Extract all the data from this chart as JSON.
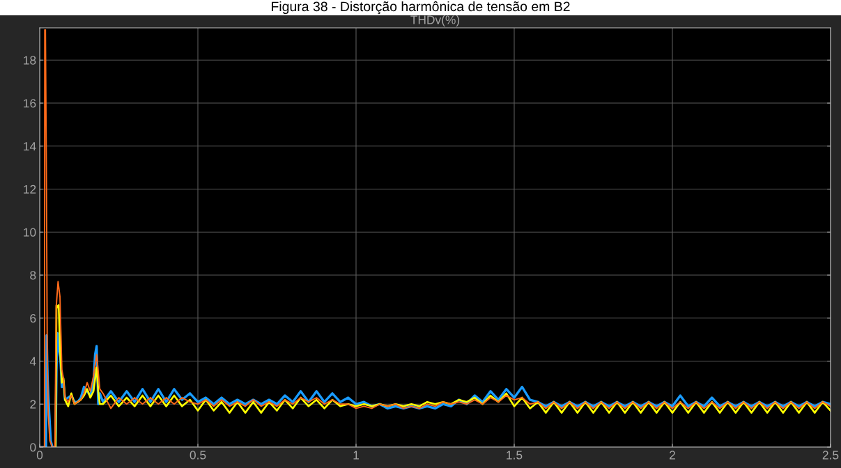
{
  "chart_data": {
    "type": "line",
    "title": "Figura 38 - Distorção harmônica de tensão em B2",
    "subtitle": "THDv(%)",
    "xlim": [
      0,
      2.5
    ],
    "xticks": [
      0,
      0.5,
      1,
      1.5,
      2,
      2.5
    ],
    "ylim": [
      0,
      19.5
    ],
    "yticks": [
      0,
      2,
      4,
      6,
      8,
      10,
      12,
      14,
      16,
      18
    ],
    "grid": true,
    "line_style": "solid",
    "series": [
      {
        "color": "#1a9cff",
        "x": [
          0,
          0.02,
          0.022,
          0.025,
          0.03,
          0.035,
          0.04,
          0.045,
          0.05,
          0.053,
          0.056,
          0.06,
          0.065,
          0.07,
          0.075,
          0.08,
          0.09,
          0.1,
          0.11,
          0.12,
          0.13,
          0.14,
          0.15,
          0.16,
          0.17,
          0.175,
          0.18,
          0.185,
          0.19,
          0.2,
          0.225,
          0.25,
          0.275,
          0.3,
          0.325,
          0.35,
          0.375,
          0.4,
          0.425,
          0.45,
          0.475,
          0.5,
          0.525,
          0.55,
          0.575,
          0.6,
          0.625,
          0.65,
          0.675,
          0.7,
          0.725,
          0.75,
          0.775,
          0.8,
          0.825,
          0.85,
          0.875,
          0.9,
          0.925,
          0.95,
          0.975,
          1.0,
          1.025,
          1.05,
          1.075,
          1.1,
          1.125,
          1.15,
          1.175,
          1.2,
          1.225,
          1.25,
          1.275,
          1.3,
          1.325,
          1.35,
          1.375,
          1.4,
          1.425,
          1.45,
          1.475,
          1.5,
          1.525,
          1.55,
          1.575,
          1.6,
          1.625,
          1.65,
          1.675,
          1.7,
          1.725,
          1.75,
          1.775,
          1.8,
          1.825,
          1.85,
          1.875,
          1.9,
          1.925,
          1.95,
          1.975,
          2.0,
          2.025,
          2.05,
          2.075,
          2.1,
          2.125,
          2.15,
          2.175,
          2.2,
          2.225,
          2.25,
          2.275,
          2.3,
          2.325,
          2.35,
          2.375,
          2.4,
          2.425,
          2.45,
          2.475,
          2.5
        ],
        "values": [
          0,
          0,
          5.2,
          3.2,
          1.6,
          0.3,
          0,
          0,
          0,
          3.6,
          5.3,
          4.6,
          4.2,
          2.8,
          3.1,
          2.2,
          2.3,
          2.4,
          2.1,
          2.1,
          2.3,
          2.8,
          2.6,
          2.4,
          3.0,
          4.3,
          4.7,
          2.0,
          2.5,
          2.1,
          2.6,
          2.1,
          2.6,
          2.1,
          2.7,
          2.1,
          2.7,
          2.1,
          2.7,
          2.2,
          2.5,
          2.1,
          2.3,
          2.0,
          2.3,
          2.0,
          2.2,
          2.0,
          2.2,
          2.0,
          2.2,
          2.0,
          2.4,
          2.1,
          2.6,
          2.1,
          2.6,
          2.1,
          2.5,
          2.1,
          2.3,
          2.0,
          2.1,
          1.9,
          2.0,
          1.8,
          1.9,
          1.8,
          1.9,
          1.8,
          1.9,
          1.8,
          2.0,
          1.9,
          2.2,
          2.0,
          2.4,
          2.1,
          2.6,
          2.2,
          2.7,
          2.3,
          2.8,
          2.2,
          2.1,
          1.9,
          2.1,
          1.9,
          2.1,
          1.9,
          2.1,
          1.9,
          2.1,
          1.9,
          2.1,
          1.9,
          2.1,
          1.9,
          2.1,
          1.9,
          2.1,
          1.9,
          2.4,
          1.9,
          2.1,
          1.9,
          2.3,
          1.9,
          2.1,
          1.9,
          2.1,
          1.9,
          2.1,
          1.9,
          2.1,
          1.9,
          2.1,
          1.9,
          2.1,
          1.9,
          2.1,
          2.0
        ]
      },
      {
        "color": "#ffff00",
        "x": [
          0.05,
          0.053,
          0.056,
          0.06,
          0.065,
          0.07,
          0.075,
          0.08,
          0.09,
          0.1,
          0.11,
          0.12,
          0.13,
          0.14,
          0.15,
          0.16,
          0.17,
          0.18,
          0.185,
          0.19,
          0.2,
          0.225,
          0.25,
          0.275,
          0.3,
          0.325,
          0.35,
          0.375,
          0.4,
          0.425,
          0.45,
          0.475,
          0.5,
          0.525,
          0.55,
          0.575,
          0.6,
          0.625,
          0.65,
          0.675,
          0.7,
          0.725,
          0.75,
          0.775,
          0.8,
          0.825,
          0.85,
          0.875,
          0.9,
          0.925,
          0.95,
          0.975,
          1.0,
          1.025,
          1.05,
          1.075,
          1.1,
          1.125,
          1.15,
          1.175,
          1.2,
          1.225,
          1.25,
          1.275,
          1.3,
          1.325,
          1.35,
          1.375,
          1.4,
          1.425,
          1.45,
          1.475,
          1.5,
          1.525,
          1.55,
          1.575,
          1.6,
          1.625,
          1.65,
          1.675,
          1.7,
          1.725,
          1.75,
          1.775,
          1.8,
          1.825,
          1.85,
          1.875,
          1.9,
          1.925,
          1.95,
          1.975,
          2.0,
          2.025,
          2.05,
          2.075,
          2.1,
          2.125,
          2.15,
          2.175,
          2.2,
          2.225,
          2.25,
          2.275,
          2.3,
          2.325,
          2.35,
          2.375,
          2.4,
          2.425,
          2.45,
          2.475,
          2.5
        ],
        "values": [
          0,
          6.6,
          6.5,
          6.6,
          4.3,
          3.0,
          3.2,
          2.2,
          1.9,
          2.5,
          2.0,
          2.1,
          2.2,
          2.4,
          2.7,
          2.3,
          2.6,
          3.7,
          2.6,
          2.0,
          2.0,
          2.4,
          1.9,
          2.3,
          1.9,
          2.4,
          1.9,
          2.4,
          1.9,
          2.4,
          1.9,
          2.2,
          1.7,
          2.2,
          1.7,
          2.1,
          1.6,
          2.1,
          1.6,
          2.1,
          1.6,
          2.1,
          1.7,
          2.2,
          1.8,
          2.3,
          1.9,
          2.2,
          1.8,
          2.2,
          1.9,
          2.0,
          1.9,
          2.0,
          1.9,
          2.0,
          1.9,
          2.0,
          1.9,
          2.0,
          1.9,
          2.1,
          2.0,
          2.1,
          2.0,
          2.2,
          2.1,
          2.3,
          2.0,
          2.4,
          2.1,
          2.5,
          1.9,
          2.3,
          1.8,
          2.1,
          1.6,
          2.1,
          1.6,
          2.1,
          1.6,
          2.1,
          1.6,
          2.1,
          1.6,
          2.1,
          1.6,
          2.1,
          1.6,
          2.1,
          1.6,
          2.1,
          1.6,
          2.1,
          1.6,
          2.1,
          1.6,
          2.1,
          1.6,
          2.1,
          1.6,
          2.1,
          1.6,
          2.1,
          1.6,
          2.1,
          1.6,
          2.1,
          1.6,
          2.1,
          1.6,
          2.1,
          1.7
        ]
      },
      {
        "color": "#ff6a1a",
        "x": [
          0,
          0.015,
          0.016,
          0.018,
          0.021,
          0.024,
          0.027,
          0.032,
          0.04,
          0.045,
          0.048,
          0.052,
          0.058,
          0.064,
          0.07,
          0.075,
          0.08,
          0.09,
          0.1,
          0.11,
          0.12,
          0.13,
          0.14,
          0.15,
          0.16,
          0.17,
          0.18,
          0.19,
          0.2,
          0.225,
          0.25,
          0.275,
          0.3,
          0.325,
          0.35,
          0.375,
          0.4,
          0.425,
          0.45,
          0.475,
          0.5,
          0.525,
          0.55,
          0.575,
          0.6,
          0.625,
          0.65,
          0.675,
          0.7,
          0.725,
          0.75,
          0.775,
          0.8,
          0.825,
          0.85,
          0.875,
          0.9,
          0.925,
          0.95,
          0.975,
          1.0,
          1.025,
          1.05,
          1.075,
          1.1,
          1.125,
          1.15,
          1.175,
          1.2,
          1.225,
          1.25,
          1.275,
          1.3,
          1.325,
          1.35,
          1.375,
          1.4,
          1.425,
          1.45,
          1.475,
          1.5,
          1.525,
          1.55,
          1.575,
          1.6,
          1.625,
          1.65,
          1.675,
          1.7,
          1.725,
          1.75,
          1.775,
          1.8,
          1.825,
          1.85,
          1.875,
          1.9,
          1.925,
          1.95,
          1.975,
          2.0,
          2.025,
          2.05,
          2.075,
          2.1,
          2.125,
          2.15,
          2.175,
          2.2,
          2.225,
          2.25,
          2.275,
          2.3,
          2.325,
          2.35,
          2.375,
          2.4,
          2.425,
          2.45,
          2.475,
          2.5
        ],
        "values": [
          0,
          0,
          19.4,
          19.4,
          13,
          4,
          1.5,
          0.3,
          0,
          0,
          0,
          6.5,
          7.7,
          7.0,
          3.6,
          3.2,
          2.3,
          2.1,
          2.4,
          2.0,
          2.1,
          2.2,
          2.5,
          3.0,
          2.6,
          3.3,
          4.3,
          2.7,
          2.5,
          1.8,
          2.3,
          2.0,
          2.3,
          2.0,
          2.3,
          2.0,
          2.3,
          2.0,
          2.3,
          2.1,
          2.0,
          2.2,
          1.9,
          2.2,
          1.9,
          2.1,
          1.9,
          2.2,
          1.9,
          2.1,
          1.9,
          2.2,
          2.0,
          2.3,
          2.1,
          2.3,
          2.0,
          2.2,
          2.0,
          2.0,
          1.8,
          1.9,
          1.8,
          2.0,
          1.9,
          2.0,
          1.8,
          1.9,
          1.8,
          2.0,
          1.9,
          2.1,
          2.0,
          2.1,
          2.0,
          2.2,
          2.0,
          2.3,
          2.1,
          2.4,
          2.2,
          2.3,
          2.0,
          2.1,
          1.8,
          2.1,
          1.8,
          2.1,
          1.8,
          2.1,
          1.8,
          2.1,
          1.8,
          2.1,
          1.8,
          2.1,
          1.8,
          2.1,
          1.8,
          2.1,
          1.8,
          2.1,
          1.8,
          2.1,
          1.8,
          2.1,
          1.8,
          2.1,
          1.8,
          2.1,
          1.8,
          2.1,
          1.8,
          2.1,
          1.8,
          2.1,
          1.8,
          2.1,
          1.8,
          2.1,
          1.9
        ]
      }
    ]
  }
}
